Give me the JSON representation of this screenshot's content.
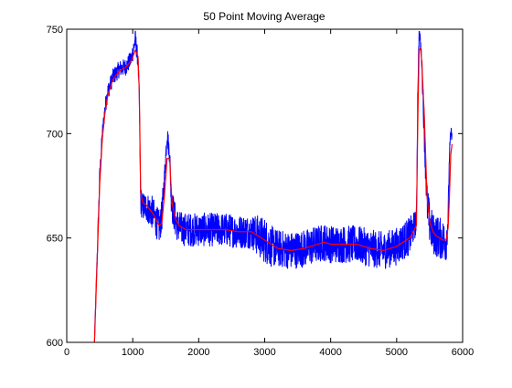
{
  "colors": {
    "background": "#ffffff",
    "axes": "#000000",
    "raw_series": "#0000ff",
    "average_series": "#ff0000"
  },
  "chart_data": {
    "type": "line",
    "title": "50 Point Moving Average",
    "xlabel": "",
    "ylabel": "",
    "xlim": [
      0,
      6000
    ],
    "ylim": [
      600,
      750
    ],
    "x_ticks": [
      "0",
      "1000",
      "2000",
      "3000",
      "4000",
      "5000",
      "6000"
    ],
    "y_ticks": [
      "600",
      "650",
      "700",
      "750"
    ],
    "grid": false,
    "legend": "none",
    "series": [
      {
        "style": "raw",
        "color": "#0000ff",
        "x": [
          420,
          460,
          500,
          540,
          580,
          620,
          700,
          800,
          900,
          980,
          1040,
          1080,
          1100,
          1120,
          1150,
          1200,
          1300,
          1400,
          1440,
          1480,
          1520,
          1560,
          1580,
          1600,
          1650,
          1700,
          1800,
          2000,
          2200,
          2400,
          2600,
          2800,
          2900,
          3000,
          3100,
          3200,
          3400,
          3600,
          3800,
          3900,
          4000,
          4200,
          4400,
          4600,
          4800,
          5000,
          5200,
          5300,
          5320,
          5340,
          5360,
          5380,
          5420,
          5460,
          5500,
          5550,
          5600,
          5650,
          5700,
          5750,
          5780,
          5800,
          5820,
          5840
        ],
        "values": [
          600,
          640,
          680,
          700,
          712,
          720,
          727,
          731,
          732,
          736,
          745,
          735,
          715,
          668,
          665,
          665,
          662,
          655,
          660,
          678,
          700,
          690,
          672,
          665,
          658,
          655,
          654,
          654,
          654,
          654,
          653,
          653,
          651,
          649,
          646,
          645,
          644,
          645,
          647,
          648,
          647,
          647,
          647,
          645,
          644,
          646,
          651,
          658,
          720,
          748,
          744,
          735,
          700,
          667,
          657,
          652,
          651,
          650,
          649,
          648,
          660,
          690,
          700,
          700
        ],
        "noise_amplitude": [
          2,
          4,
          4,
          4,
          4,
          4,
          4,
          4,
          4,
          4,
          5,
          4,
          6,
          7,
          7,
          7,
          8,
          8,
          8,
          6,
          5,
          5,
          8,
          8,
          8,
          8,
          8,
          8,
          8,
          8,
          8,
          8,
          10,
          11,
          10,
          9,
          9,
          9,
          9,
          9,
          9,
          9,
          9,
          9,
          9,
          9,
          9,
          6,
          4,
          3,
          3,
          4,
          8,
          10,
          10,
          10,
          10,
          10,
          10,
          10,
          6,
          4,
          3,
          3
        ]
      },
      {
        "style": "average",
        "color": "#ff0000",
        "x": [
          420,
          460,
          500,
          540,
          580,
          620,
          700,
          800,
          900,
          980,
          1040,
          1080,
          1100,
          1120,
          1150,
          1200,
          1300,
          1400,
          1440,
          1480,
          1520,
          1560,
          1580,
          1600,
          1650,
          1700,
          1800,
          2000,
          2200,
          2400,
          2600,
          2800,
          2900,
          3000,
          3100,
          3200,
          3400,
          3600,
          3800,
          3900,
          4000,
          4200,
          4400,
          4600,
          4800,
          5000,
          5200,
          5300,
          5320,
          5340,
          5360,
          5380,
          5420,
          5460,
          5500,
          5550,
          5600,
          5650,
          5700,
          5750,
          5780,
          5800,
          5820,
          5840
        ],
        "values": [
          600,
          638,
          676,
          698,
          710,
          718,
          726,
          730,
          732,
          735,
          740,
          737,
          720,
          672,
          667,
          666,
          662,
          656,
          657,
          670,
          688,
          688,
          675,
          666,
          659,
          656,
          654,
          654,
          654,
          654,
          653,
          653,
          651,
          649,
          647,
          645,
          644,
          645,
          647,
          648,
          647,
          647,
          647,
          645,
          644,
          646,
          650,
          656,
          705,
          740,
          741,
          735,
          708,
          670,
          658,
          653,
          651,
          650,
          649,
          649,
          655,
          670,
          690,
          695
        ]
      }
    ]
  }
}
